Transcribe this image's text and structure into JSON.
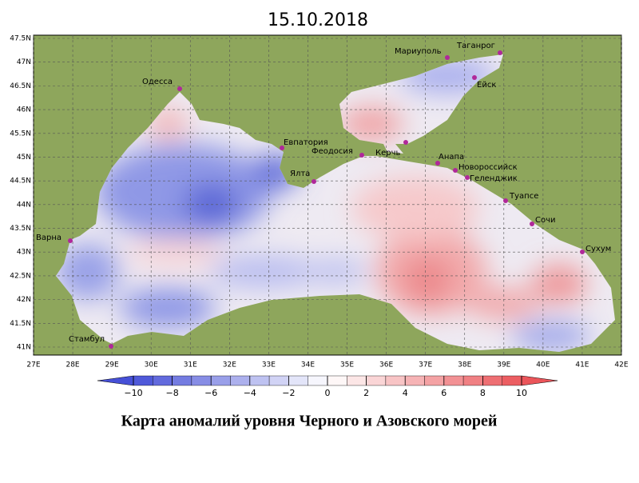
{
  "title": "15.10.2018",
  "map": {
    "lon_ticks": [
      {
        "value": 27,
        "label": "27E"
      },
      {
        "value": 28,
        "label": "28E"
      },
      {
        "value": 29,
        "label": "29E"
      },
      {
        "value": 30,
        "label": "30E"
      },
      {
        "value": 31,
        "label": "31E"
      },
      {
        "value": 32,
        "label": "32E"
      },
      {
        "value": 33,
        "label": "33E"
      },
      {
        "value": 34,
        "label": "34E"
      },
      {
        "value": 35,
        "label": "35E"
      },
      {
        "value": 36,
        "label": "36E"
      },
      {
        "value": 37,
        "label": "37E"
      },
      {
        "value": 38,
        "label": "38E"
      },
      {
        "value": 39,
        "label": "39E"
      },
      {
        "value": 40,
        "label": "40E"
      },
      {
        "value": 41,
        "label": "41E"
      },
      {
        "value": 42,
        "label": "42E"
      }
    ],
    "lat_ticks": [
      {
        "value": 47.5,
        "label": "47.5N"
      },
      {
        "value": 47,
        "label": "47N"
      },
      {
        "value": 46.5,
        "label": "46.5N"
      },
      {
        "value": 46,
        "label": "46N"
      },
      {
        "value": 45.5,
        "label": "45.5N"
      },
      {
        "value": 45,
        "label": "45N"
      },
      {
        "value": 44.5,
        "label": "44.5N"
      },
      {
        "value": 44,
        "label": "44N"
      },
      {
        "value": 43.5,
        "label": "43.5N"
      },
      {
        "value": 43,
        "label": "43N"
      },
      {
        "value": 42.5,
        "label": "42.5N"
      },
      {
        "value": 42,
        "label": "42N"
      },
      {
        "value": 41.5,
        "label": "41.5N"
      },
      {
        "value": 41,
        "label": "41N"
      }
    ]
  },
  "cities": [
    "Одесса",
    "Мариуполь",
    "Таганрог",
    "Ейск",
    "Евпатория",
    "Феодосия",
    "Керчь",
    "Анапа",
    "Новороссийск",
    "Геленджик",
    "Ялта",
    "Туапсе",
    "Сочи",
    "Варна",
    "Сухум",
    "Стамбул"
  ],
  "colorbar": {
    "ticks": [
      {
        "value": -10,
        "label": "−10"
      },
      {
        "value": -8,
        "label": "−8"
      },
      {
        "value": -6,
        "label": "−6"
      },
      {
        "value": -4,
        "label": "−4"
      },
      {
        "value": -2,
        "label": "−2"
      },
      0,
      2,
      4,
      6,
      8,
      10
    ]
  },
  "caption": "Карта аномалий уровня Черного и Азовского морей"
}
